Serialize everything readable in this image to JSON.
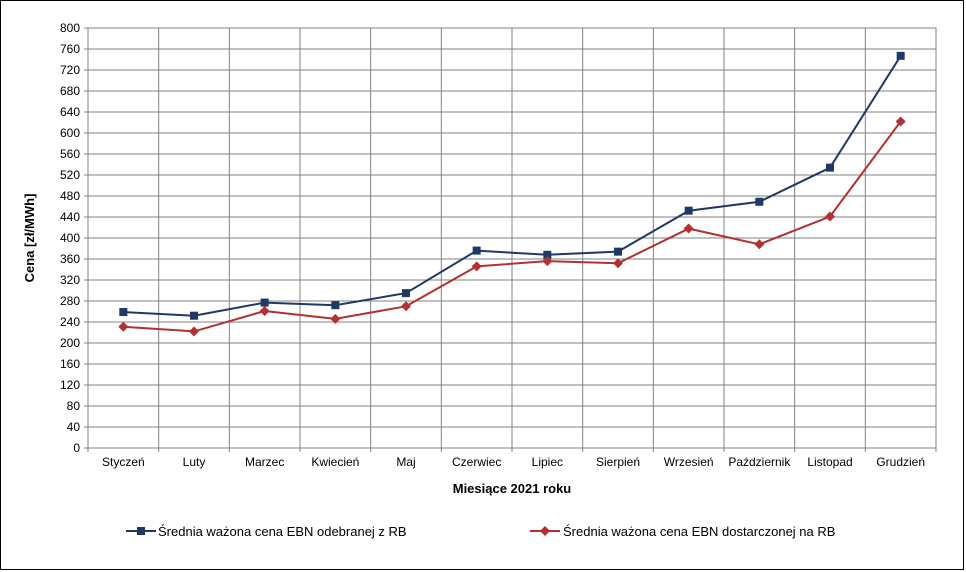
{
  "chart_data": {
    "type": "line",
    "xlabel": "Miesiące 2021  roku",
    "ylabel": "Cena [zł/MWh]",
    "ylim": [
      0,
      800
    ],
    "ytick_step": 40,
    "categories": [
      "Styczeń",
      "Luty",
      "Marzec",
      "Kwiecień",
      "Maj",
      "Czerwiec",
      "Lipiec",
      "Sierpień",
      "Wrzesień",
      "Październik",
      "Listopad",
      "Grudzień"
    ],
    "series": [
      {
        "name": "Średnia ważona cena EBN odebranej z RB",
        "color": "#1f3864",
        "marker": "square",
        "values": [
          259,
          252,
          277,
          272,
          295,
          376,
          368,
          374,
          452,
          469,
          534,
          747
        ]
      },
      {
        "name": "Średnia ważona cena EBN dostarczonej na RB",
        "color": "#b23131",
        "marker": "diamond",
        "values": [
          231,
          222,
          261,
          246,
          270,
          346,
          356,
          352,
          418,
          388,
          441,
          622
        ]
      }
    ],
    "grid": true,
    "legend_position": "bottom"
  }
}
